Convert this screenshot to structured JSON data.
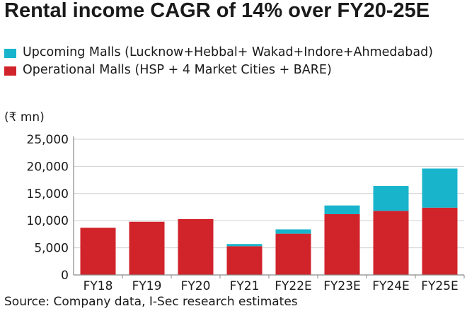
{
  "title": "Rental income CAGR of 14% over FY20-25E",
  "legend": [
    {
      "label": "Upcoming Malls (Lucknow+Hebbal+ Wakad+Indore+Ahmedabad)",
      "color": "#18b4cc"
    },
    {
      "label": "Operational Malls (HSP + 4 Market Cities + BARE)",
      "color": "#d1232a"
    }
  ],
  "unit_label": "(₹ mn)",
  "source": "Source: Company data, I-Sec research estimates",
  "chart_data": {
    "type": "bar",
    "stacked": true,
    "categories": [
      "FY18",
      "FY19",
      "FY20",
      "FY21",
      "FY22E",
      "FY23E",
      "FY24E",
      "FY25E"
    ],
    "series": [
      {
        "name": "Operational Malls (HSP + 4 Market Cities + BARE)",
        "color": "#d1232a",
        "values": [
          8700,
          9800,
          10300,
          5300,
          7600,
          11200,
          11800,
          12400
        ]
      },
      {
        "name": "Upcoming Malls (Lucknow+Hebbal+ Wakad+Indore+Ahmedabad)",
        "color": "#18b4cc",
        "values": [
          0,
          0,
          0,
          400,
          800,
          1600,
          4600,
          7200
        ]
      }
    ],
    "ylim": [
      0,
      25000
    ],
    "yticks": [
      0,
      5000,
      10000,
      15000,
      20000,
      25000
    ],
    "ytick_labels": [
      "0",
      "5,000",
      "10,000",
      "15,000",
      "20,000",
      "25,000"
    ],
    "grid": true,
    "axis_color": "#8a8a8a"
  }
}
